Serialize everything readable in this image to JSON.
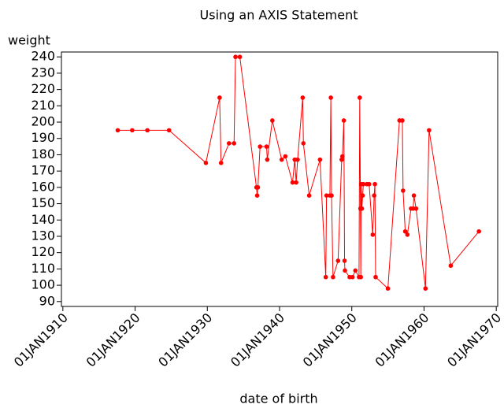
{
  "chart_data": {
    "type": "line",
    "title": "Using an AXIS Statement",
    "x_label": "date of birth",
    "y_label": "weight",
    "color": "#ff0000",
    "x": [
      1917.6,
      1919.6,
      1921.7,
      1924.7,
      1929.8,
      1931.7,
      1931.9,
      1933.0,
      1933.7,
      1933.9,
      1934.5,
      1936.8,
      1936.9,
      1937.0,
      1937.3,
      1938.2,
      1938.3,
      1939.0,
      1940.3,
      1940.8,
      1941.8,
      1942.1,
      1942.3,
      1942.5,
      1943.2,
      1943.3,
      1944.1,
      1945.6,
      1946.4,
      1946.5,
      1946.97,
      1947.1,
      1947.2,
      1947.4,
      1948.1,
      1948.6,
      1948.7,
      1948.9,
      1949.0,
      1949.05,
      1949.7,
      1950.1,
      1950.5,
      1951.0,
      1951.1,
      1951.2,
      1951.25,
      1951.3,
      1951.4,
      1951.5,
      1951.6,
      1952.1,
      1952.4,
      1952.9,
      1953.1,
      1953.2,
      1953.3,
      1955.0,
      1956.6,
      1957.0,
      1957.1,
      1957.4,
      1957.7,
      1958.2,
      1958.5,
      1958.6,
      1958.9,
      1960.2,
      1960.7,
      1963.7,
      1967.6
    ],
    "values": [
      195,
      195,
      195,
      195,
      175,
      215,
      175,
      187,
      187,
      240,
      240,
      160,
      155,
      160,
      185,
      185,
      177,
      201,
      177,
      179,
      163,
      177,
      163,
      177,
      215,
      187,
      155,
      177,
      105,
      155,
      155,
      215,
      155,
      105,
      115,
      177,
      179,
      201,
      115,
      109,
      105,
      105,
      109,
      105,
      215,
      147,
      105,
      162,
      147,
      155,
      162,
      162,
      162,
      131,
      155,
      162,
      105,
      98,
      201,
      201,
      158,
      133,
      131,
      147,
      147,
      155,
      147,
      98,
      195,
      112,
      133
    ],
    "xlim": [
      1909.8,
      1970.2
    ],
    "xticks": [
      {
        "value": 1910,
        "label": "01JAN1910"
      },
      {
        "value": 1920,
        "label": "01JAN1920"
      },
      {
        "value": 1930,
        "label": "01JAN1930"
      },
      {
        "value": 1940,
        "label": "01JAN1940"
      },
      {
        "value": 1950,
        "label": "01JAN1950"
      },
      {
        "value": 1960,
        "label": "01JAN1960"
      },
      {
        "value": 1970,
        "label": "01JAN1970"
      }
    ],
    "ylim": [
      87,
      243
    ],
    "yticks": [
      90,
      100,
      110,
      120,
      130,
      140,
      150,
      160,
      170,
      180,
      190,
      200,
      210,
      220,
      230,
      240
    ],
    "grid": false
  }
}
